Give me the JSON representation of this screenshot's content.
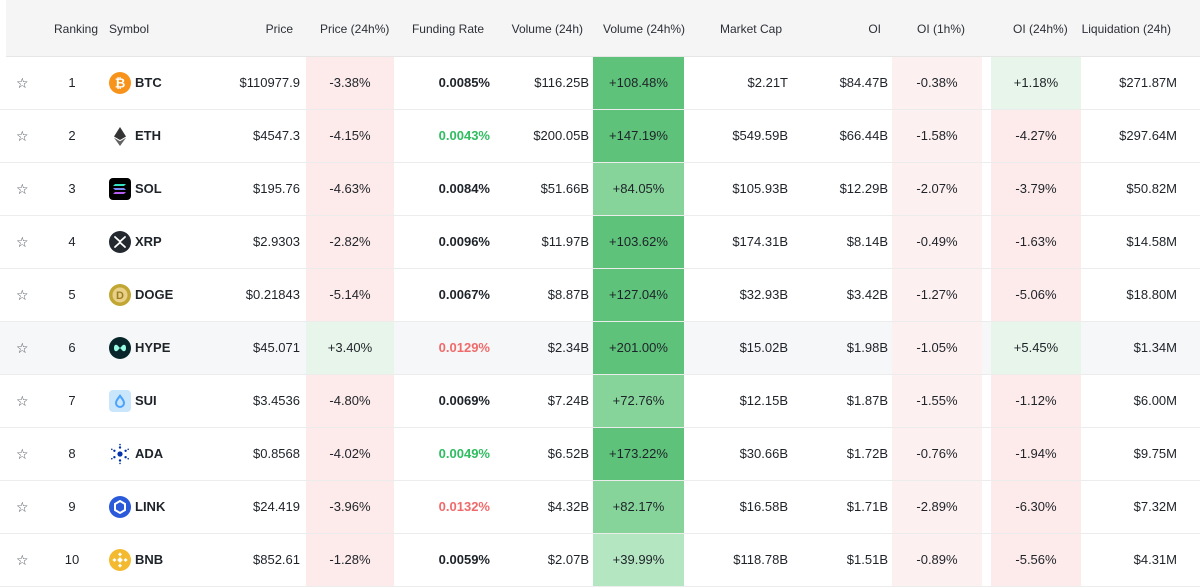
{
  "headers": {
    "ranking": "Ranking",
    "symbol": "Symbol",
    "price": "Price",
    "price_24h": "Price (24h%)",
    "funding_rate": "Funding Rate",
    "volume_24h": "Volume (24h)",
    "volume_24h_pct": "Volume (24h%)",
    "market_cap": "Market Cap",
    "oi": "OI",
    "oi_1h": "OI (1h%)",
    "oi_24h": "OI (24h%)",
    "liquidation_24h": "Liquidation (24h)"
  },
  "star_glyph": "☆",
  "colors": {
    "negative_bg": "#fdeaea",
    "negative_bg_light": "#fdf0f0",
    "positive_bg": "#e8f5ea",
    "volume_green_dark": "#5ec27a",
    "volume_green_mid": "#86d49a",
    "volume_green_light": "#b5e6c2",
    "funding_green": "#2ebd60",
    "funding_red": "#f06a6a",
    "text": "#1e2329"
  },
  "rows": [
    {
      "rank": "1",
      "symbol": "BTC",
      "icon": "btc-icon",
      "price": "$110977.9",
      "price_24h": "-3.38%",
      "price_dir": -1,
      "funding": "0.0085%",
      "funding_color": "neutral",
      "volume": "$116.25B",
      "volume_pct": "+108.48%",
      "volume_level": 0.54,
      "market_cap": "$2.21T",
      "oi": "$84.47B",
      "oi_1h": "-0.38%",
      "oi_1h_dir": -1,
      "oi_24h": "+1.18%",
      "oi_24h_dir": 1,
      "liquidation": "$271.87M"
    },
    {
      "rank": "2",
      "symbol": "ETH",
      "icon": "eth-icon",
      "price": "$4547.3",
      "price_24h": "-4.15%",
      "price_dir": -1,
      "funding": "0.0043%",
      "funding_color": "green",
      "volume": "$200.05B",
      "volume_pct": "+147.19%",
      "volume_level": 0.73,
      "market_cap": "$549.59B",
      "oi": "$66.44B",
      "oi_1h": "-1.58%",
      "oi_1h_dir": -1,
      "oi_24h": "-4.27%",
      "oi_24h_dir": -1,
      "liquidation": "$297.64M"
    },
    {
      "rank": "3",
      "symbol": "SOL",
      "icon": "sol-icon",
      "price": "$195.76",
      "price_24h": "-4.63%",
      "price_dir": -1,
      "funding": "0.0084%",
      "funding_color": "neutral",
      "volume": "$51.66B",
      "volume_pct": "+84.05%",
      "volume_level": 0.42,
      "market_cap": "$105.93B",
      "oi": "$12.29B",
      "oi_1h": "-2.07%",
      "oi_1h_dir": -1,
      "oi_24h": "-3.79%",
      "oi_24h_dir": -1,
      "liquidation": "$50.82M"
    },
    {
      "rank": "4",
      "symbol": "XRP",
      "icon": "xrp-icon",
      "price": "$2.9303",
      "price_24h": "-2.82%",
      "price_dir": -1,
      "funding": "0.0096%",
      "funding_color": "neutral",
      "volume": "$11.97B",
      "volume_pct": "+103.62%",
      "volume_level": 0.52,
      "market_cap": "$174.31B",
      "oi": "$8.14B",
      "oi_1h": "-0.49%",
      "oi_1h_dir": -1,
      "oi_24h": "-1.63%",
      "oi_24h_dir": -1,
      "liquidation": "$14.58M"
    },
    {
      "rank": "5",
      "symbol": "DOGE",
      "icon": "doge-icon",
      "price": "$0.21843",
      "price_24h": "-5.14%",
      "price_dir": -1,
      "funding": "0.0067%",
      "funding_color": "neutral",
      "volume": "$8.87B",
      "volume_pct": "+127.04%",
      "volume_level": 0.63,
      "market_cap": "$32.93B",
      "oi": "$3.42B",
      "oi_1h": "-1.27%",
      "oi_1h_dir": -1,
      "oi_24h": "-5.06%",
      "oi_24h_dir": -1,
      "liquidation": "$18.80M"
    },
    {
      "rank": "6",
      "symbol": "HYPE",
      "icon": "hype-icon",
      "price": "$45.071",
      "price_24h": "+3.40%",
      "price_dir": 1,
      "funding": "0.0129%",
      "funding_color": "red",
      "volume": "$2.34B",
      "volume_pct": "+201.00%",
      "volume_level": 1.0,
      "market_cap": "$15.02B",
      "oi": "$1.98B",
      "oi_1h": "-1.05%",
      "oi_1h_dir": -1,
      "oi_24h": "+5.45%",
      "oi_24h_dir": 1,
      "liquidation": "$1.34M"
    },
    {
      "rank": "7",
      "symbol": "SUI",
      "icon": "sui-icon",
      "price": "$3.4536",
      "price_24h": "-4.80%",
      "price_dir": -1,
      "funding": "0.0069%",
      "funding_color": "neutral",
      "volume": "$7.24B",
      "volume_pct": "+72.76%",
      "volume_level": 0.36,
      "market_cap": "$12.15B",
      "oi": "$1.87B",
      "oi_1h": "-1.55%",
      "oi_1h_dir": -1,
      "oi_24h": "-1.12%",
      "oi_24h_dir": -1,
      "liquidation": "$6.00M"
    },
    {
      "rank": "8",
      "symbol": "ADA",
      "icon": "ada-icon",
      "price": "$0.8568",
      "price_24h": "-4.02%",
      "price_dir": -1,
      "funding": "0.0049%",
      "funding_color": "green",
      "volume": "$6.52B",
      "volume_pct": "+173.22%",
      "volume_level": 0.86,
      "market_cap": "$30.66B",
      "oi": "$1.72B",
      "oi_1h": "-0.76%",
      "oi_1h_dir": -1,
      "oi_24h": "-1.94%",
      "oi_24h_dir": -1,
      "liquidation": "$9.75M"
    },
    {
      "rank": "9",
      "symbol": "LINK",
      "icon": "link-icon",
      "price": "$24.419",
      "price_24h": "-3.96%",
      "price_dir": -1,
      "funding": "0.0132%",
      "funding_color": "red",
      "volume": "$4.32B",
      "volume_pct": "+82.17%",
      "volume_level": 0.41,
      "market_cap": "$16.58B",
      "oi": "$1.71B",
      "oi_1h": "-2.89%",
      "oi_1h_dir": -1,
      "oi_24h": "-6.30%",
      "oi_24h_dir": -1,
      "liquidation": "$7.32M"
    },
    {
      "rank": "10",
      "symbol": "BNB",
      "icon": "bnb-icon",
      "price": "$852.61",
      "price_24h": "-1.28%",
      "price_dir": -1,
      "funding": "0.0059%",
      "funding_color": "neutral",
      "volume": "$2.07B",
      "volume_pct": "+39.99%",
      "volume_level": 0.2,
      "market_cap": "$118.78B",
      "oi": "$1.51B",
      "oi_1h": "-0.89%",
      "oi_1h_dir": -1,
      "oi_24h": "-5.56%",
      "oi_24h_dir": -1,
      "liquidation": "$4.31M"
    }
  ]
}
